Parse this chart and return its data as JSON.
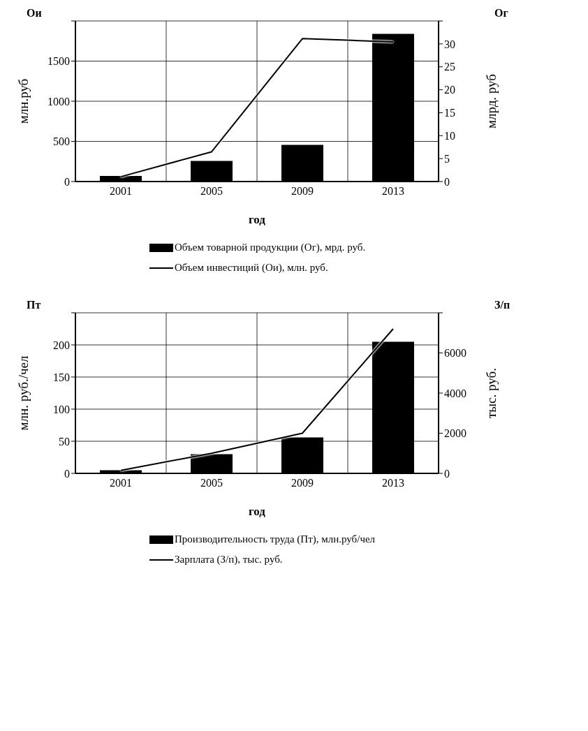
{
  "chart_data": [
    {
      "type": "bar",
      "categories": [
        "2001",
        "2005",
        "2009",
        "2013"
      ],
      "xlabel": "год",
      "ylabel": "млн.руб",
      "y2label": "млрд. руб",
      "annotations": [
        "Ои",
        "Ог"
      ],
      "series": [
        {
          "name": "Объем товарной продукции (Ог), мрд. руб.",
          "axis": "y2",
          "color": "#000000",
          "values": [
            1.2,
            4.5,
            8.0,
            32.2
          ]
        },
        {
          "name": "Объем инвестиций (Ои), млн. руб.",
          "type": "line",
          "color": "#000000",
          "values": [
            60,
            370,
            1780,
            1740
          ]
        }
      ],
      "ylim": [
        0,
        2000
      ],
      "yticks": [
        0,
        500,
        1000,
        1500,
        {
          "value": 2000,
          "label": null
        }
      ],
      "y2lim": [
        0,
        35
      ],
      "y2ticks": [
        0,
        5,
        10,
        15,
        20,
        25,
        30,
        {
          "value": 35,
          "label": null
        }
      ],
      "grid": true,
      "legend": "bottom",
      "marker": "none"
    },
    {
      "type": "bar",
      "categories": [
        "2001",
        "2005",
        "2009",
        "2013"
      ],
      "xlabel": "год",
      "ylabel": "млн. руб./чел",
      "y2label": "тыс. руб.",
      "annotations": [
        "Пт",
        "З/п"
      ],
      "series": [
        {
          "name": "Производительность труда (Пт), млн.руб/чел",
          "color": "#000000",
          "values": [
            5,
            30,
            56,
            205
          ]
        },
        {
          "name": "Зарплата (З/п),  тыс. руб.",
          "type": "line",
          "axis": "y2",
          "color": "#000000",
          "values": [
            150,
            1000,
            2000,
            7200
          ]
        }
      ],
      "ylim": [
        0,
        250
      ],
      "yticks": [
        0,
        50,
        100,
        150,
        200,
        {
          "value": 250,
          "label": null
        }
      ],
      "y2lim": [
        0,
        8000
      ],
      "y2ticks": [
        0,
        2000,
        4000,
        6000,
        {
          "value": 8000,
          "label": null
        }
      ],
      "grid": true,
      "legend": "bottom",
      "marker": "none"
    }
  ]
}
